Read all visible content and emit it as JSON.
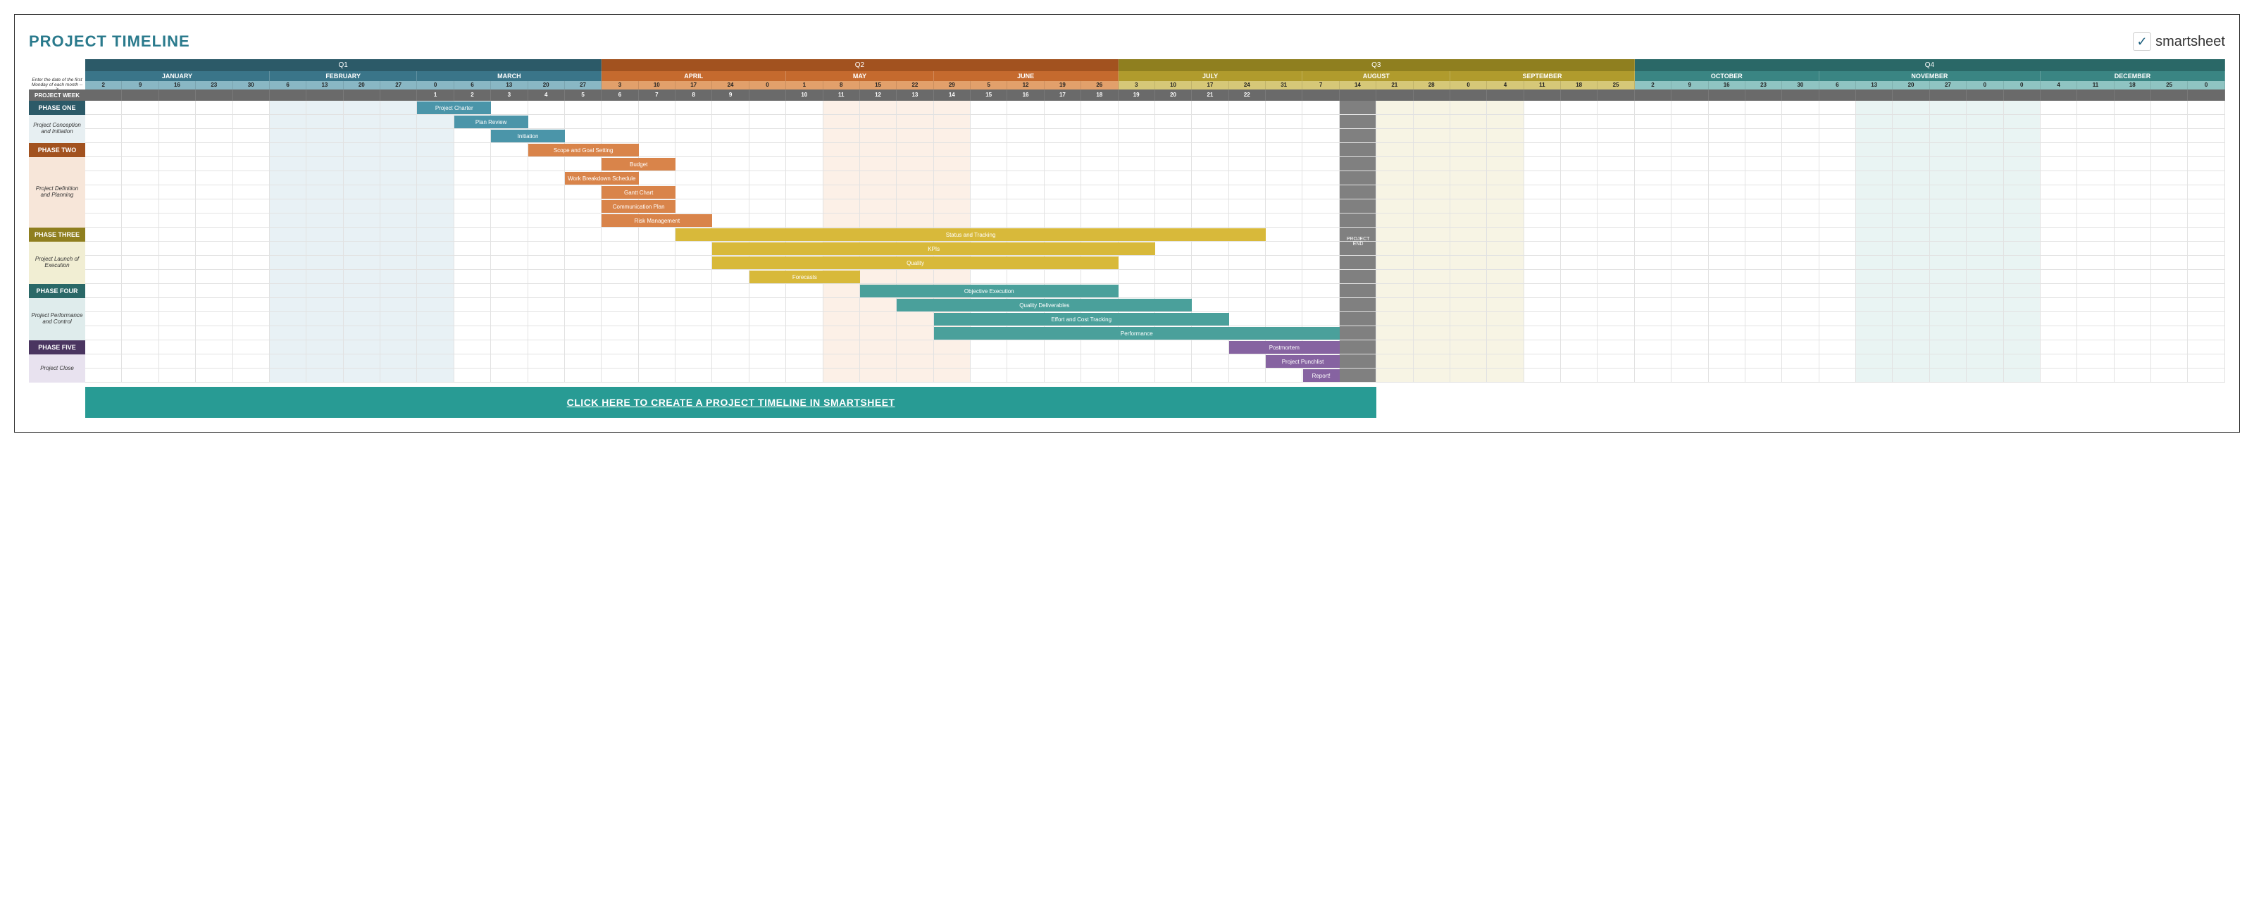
{
  "title": "PROJECT TIMELINE",
  "logo_text": "smartsheet",
  "note": "Enter the date of the first Monday of each month -->",
  "week_label": "PROJECT WEEK",
  "cta": "CLICK HERE TO CREATE A PROJECT TIMELINE IN SMARTSHEET",
  "cta_bg": "#289b94",
  "milestone": {
    "label": "PROJECT END",
    "col": 34
  },
  "total_cols": 58,
  "quarters": [
    {
      "label": "Q1",
      "span": 14,
      "bg": "#2c5a68"
    },
    {
      "label": "Q2",
      "span": 14,
      "bg": "#a2521f"
    },
    {
      "label": "Q3",
      "span": 14,
      "bg": "#8f7f1f"
    },
    {
      "label": "Q4",
      "span": 16,
      "bg": "#2a6867"
    }
  ],
  "months": [
    {
      "label": "JANUARY",
      "span": 5,
      "bg": "#3a7589",
      "day_bg": "#89b7c4"
    },
    {
      "label": "FEBRUARY",
      "span": 4,
      "bg": "#3a7589",
      "day_bg": "#89b7c4"
    },
    {
      "label": "MARCH",
      "span": 5,
      "bg": "#3a7589",
      "day_bg": "#89b7c4"
    },
    {
      "label": "APRIL",
      "span": 5,
      "bg": "#c56a2e",
      "day_bg": "#e2a06b"
    },
    {
      "label": "MAY",
      "span": 4,
      "bg": "#c56a2e",
      "day_bg": "#e2a06b"
    },
    {
      "label": "JUNE",
      "span": 5,
      "bg": "#c56a2e",
      "day_bg": "#e2a06b"
    },
    {
      "label": "JULY",
      "span": 5,
      "bg": "#b09b2d",
      "day_bg": "#d6c878"
    },
    {
      "label": "AUGUST",
      "span": 4,
      "bg": "#b09b2d",
      "day_bg": "#d6c878"
    },
    {
      "label": "SEPTEMBER",
      "span": 5,
      "bg": "#b09b2d",
      "day_bg": "#d6c878"
    },
    {
      "label": "OCTOBER",
      "span": 5,
      "bg": "#3a8583",
      "day_bg": "#8fc4c2"
    },
    {
      "label": "NOVEMBER",
      "span": 6,
      "bg": "#3a8583",
      "day_bg": "#8fc4c2"
    },
    {
      "label": "DECEMBER",
      "span": 5,
      "bg": "#3a8583",
      "day_bg": "#8fc4c2"
    }
  ],
  "days": [
    "2",
    "9",
    "16",
    "23",
    "30",
    "6",
    "13",
    "20",
    "27",
    "0",
    "6",
    "13",
    "20",
    "27",
    "3",
    "10",
    "17",
    "24",
    "0",
    "1",
    "8",
    "15",
    "22",
    "29",
    "5",
    "12",
    "19",
    "26",
    "3",
    "10",
    "17",
    "24",
    "31",
    "7",
    "14",
    "21",
    "28",
    "0",
    "4",
    "11",
    "18",
    "25",
    "2",
    "9",
    "16",
    "23",
    "30",
    "6",
    "13",
    "20",
    "27",
    "0",
    "0",
    "4",
    "11",
    "18",
    "25",
    "0"
  ],
  "weeks": [
    "",
    "",
    "",
    "",
    "",
    "",
    "",
    "",
    "",
    "1",
    "2",
    "3",
    "4",
    "5",
    "6",
    "7",
    "8",
    "9",
    "",
    "10",
    "11",
    "12",
    "13",
    "14",
    "15",
    "16",
    "17",
    "18",
    "19",
    "20",
    "21",
    "22",
    "",
    "",
    "",
    "",
    "",
    "",
    "",
    "",
    "",
    "",
    "",
    "",
    "",
    "",
    "",
    "",
    "",
    "",
    "",
    "",
    "",
    "",
    "",
    "",
    "",
    ""
  ],
  "shades": [
    {
      "start": 5,
      "span": 5,
      "color": "#d6e6ec"
    },
    {
      "start": 20,
      "span": 4,
      "color": "#f9e3d4"
    },
    {
      "start": 35,
      "span": 4,
      "color": "#f1ebcd"
    },
    {
      "start": 48,
      "span": 5,
      "color": "#d7ebea"
    }
  ],
  "phases": [
    {
      "phase_label": "PHASE ONE",
      "phase_bg": "#2c5a68",
      "section_label": "Project Conception and Initiation",
      "section_bg": "#e7eff2",
      "section_rows": 2,
      "tasks": [
        {
          "label": "Project Charter",
          "start": 9,
          "span": 2,
          "bg": "#4b95a9"
        },
        {
          "label": "Plan Review",
          "start": 10,
          "span": 2,
          "bg": "#4b95a9"
        },
        {
          "label": "Initiation",
          "start": 11,
          "span": 2,
          "bg": "#4b95a9"
        }
      ]
    },
    {
      "phase_label": "PHASE TWO",
      "phase_bg": "#a2521f",
      "section_label": "Project Definition and Planning",
      "section_bg": "#f7e6d9",
      "section_rows": 5,
      "tasks": [
        {
          "label": "Scope and Goal Setting",
          "start": 12,
          "span": 3,
          "bg": "#d9844a"
        },
        {
          "label": "Budget",
          "start": 14,
          "span": 2,
          "bg": "#d9844a"
        },
        {
          "label": "Work Breakdown Schedule",
          "start": 13,
          "span": 2,
          "bg": "#d9844a"
        },
        {
          "label": "Gantt Chart",
          "start": 14,
          "span": 2,
          "bg": "#d9844a"
        },
        {
          "label": "Communication Plan",
          "start": 14,
          "span": 2,
          "bg": "#d9844a"
        },
        {
          "label": "Risk Management",
          "start": 14,
          "span": 3,
          "bg": "#d9844a"
        }
      ]
    },
    {
      "phase_label": "PHASE THREE",
      "phase_bg": "#8f7f1f",
      "section_label": "Project Launch of Execution",
      "section_bg": "#f1eed3",
      "section_rows": 3,
      "tasks": [
        {
          "label": "Status and Tracking",
          "start": 16,
          "span": 16,
          "bg": "#d8b93a"
        },
        {
          "label": "KPIs",
          "start": 17,
          "span": 12,
          "bg": "#d8b93a"
        },
        {
          "label": "Quality",
          "start": 17,
          "span": 11,
          "bg": "#d8b93a"
        },
        {
          "label": "Forecasts",
          "start": 18,
          "span": 3,
          "bg": "#d8b93a"
        }
      ]
    },
    {
      "phase_label": "PHASE FOUR",
      "phase_bg": "#2a6867",
      "section_label": "Project Performance and Control",
      "section_bg": "#dfecec",
      "section_rows": 3,
      "tasks": [
        {
          "label": "Objective Execution",
          "start": 21,
          "span": 7,
          "bg": "#4aa09b"
        },
        {
          "label": "Quality Deliverables",
          "start": 22,
          "span": 8,
          "bg": "#4aa09b"
        },
        {
          "label": "Effort and Cost Tracking",
          "start": 23,
          "span": 8,
          "bg": "#4aa09b"
        },
        {
          "label": "Performance",
          "start": 23,
          "span": 11,
          "bg": "#4aa09b"
        }
      ]
    },
    {
      "phase_label": "PHASE FIVE",
      "phase_bg": "#4a3560",
      "section_label": "Project Close",
      "section_bg": "#e8e2ef",
      "section_rows": 2,
      "tasks": [
        {
          "label": "Postmortem",
          "start": 31,
          "span": 3,
          "bg": "#8663a1"
        },
        {
          "label": "Project Punchlist",
          "start": 32,
          "span": 2,
          "bg": "#8663a1"
        },
        {
          "label": "Report!",
          "start": 33,
          "span": 1,
          "bg": "#8663a1"
        }
      ]
    }
  ]
}
